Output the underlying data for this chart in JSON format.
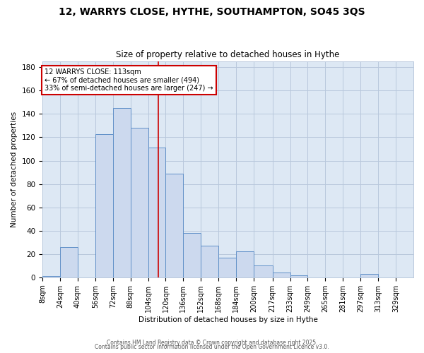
{
  "title": "12, WARRYS CLOSE, HYTHE, SOUTHAMPTON, SO45 3QS",
  "subtitle": "Size of property relative to detached houses in Hythe",
  "xlabel": "Distribution of detached houses by size in Hythe",
  "ylabel": "Number of detached properties",
  "bin_edges": [
    8,
    24,
    40,
    56,
    72,
    88,
    104,
    120,
    136,
    152,
    168,
    184,
    200,
    217,
    233,
    249,
    265,
    281,
    297,
    313,
    329,
    345
  ],
  "bin_counts": [
    1,
    26,
    0,
    123,
    145,
    128,
    111,
    89,
    38,
    27,
    17,
    22,
    10,
    4,
    2,
    0,
    0,
    0,
    3,
    0,
    0
  ],
  "bar_color": "#ccd9ee",
  "bar_edge_color": "#6090c8",
  "vline_x": 113,
  "vline_color": "#cc0000",
  "annotation_title": "12 WARRYS CLOSE: 113sqm",
  "annotation_line1": "← 67% of detached houses are smaller (494)",
  "annotation_line2": "33% of semi-detached houses are larger (247) →",
  "annotation_box_edge": "#cc0000",
  "ylim": [
    0,
    185
  ],
  "yticks": [
    0,
    20,
    40,
    60,
    80,
    100,
    120,
    140,
    160,
    180
  ],
  "grid_color": "#b8c8dc",
  "background_color": "#dde8f4",
  "footer1": "Contains HM Land Registry data © Crown copyright and database right 2025.",
  "footer2": "Contains public sector information licensed under the Open Government Licence v3.0.",
  "title_fontsize": 10,
  "subtitle_fontsize": 8.5,
  "axis_label_fontsize": 7.5,
  "tick_label_fontsize": 7,
  "footer_fontsize": 5.5
}
